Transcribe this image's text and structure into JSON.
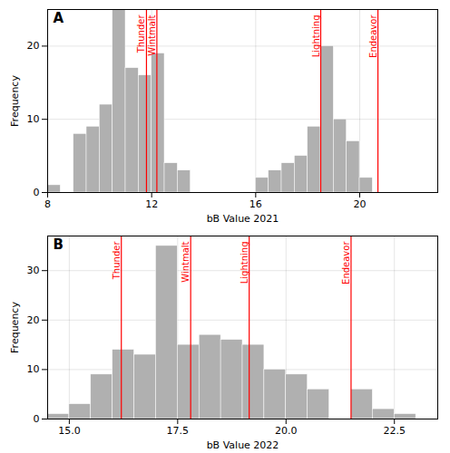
{
  "chart_data": [
    {
      "type": "histogram",
      "title": "A",
      "x_label": "bB Value 2021",
      "y_label": "Frequency",
      "xlim": [
        8,
        23
      ],
      "ylim": [
        0,
        25
      ],
      "xticks": [
        8,
        12,
        16,
        20
      ],
      "yticks": [
        0,
        10,
        20
      ],
      "bins": [
        8.0,
        8.5,
        9.0,
        9.5,
        10.0,
        10.5,
        11.0,
        11.5,
        12.0,
        12.5,
        13.0,
        13.5,
        14.0,
        14.5,
        15.0,
        15.5,
        16.0,
        16.5,
        17.0,
        17.5,
        18.0,
        18.5,
        19.0,
        19.5,
        20.0,
        20.5,
        21.0,
        21.5,
        22.0,
        22.5,
        23.0
      ],
      "values": [
        1,
        0,
        8,
        9,
        12,
        25,
        17,
        16,
        19,
        4,
        3,
        0,
        0,
        0,
        0,
        0,
        2,
        3,
        4,
        5,
        9,
        20,
        10,
        7,
        2,
        0,
        0,
        0,
        0,
        0
      ],
      "color": "#b0b0b0",
      "grid": true,
      "annotations": [
        {
          "x": 11.8,
          "text": "Thunder",
          "color": "red"
        },
        {
          "x": 12.2,
          "text": "Wintmalt",
          "color": "red"
        },
        {
          "x": 18.5,
          "text": "Lightning",
          "color": "red"
        },
        {
          "x": 20.7,
          "text": "Endeavor",
          "color": "red"
        }
      ]
    },
    {
      "type": "histogram",
      "title": "B",
      "x_label": "bB Value 2022",
      "y_label": "Frequency",
      "xlim": [
        14.5,
        23.5
      ],
      "ylim": [
        0,
        37
      ],
      "xticks": [
        {
          "value": 15.0,
          "label": "15.0"
        },
        17.5,
        {
          "value": 20.0,
          "label": "20.0"
        },
        22.5
      ],
      "yticks": [
        0,
        10,
        20,
        30
      ],
      "bins": [
        14.5,
        15.0,
        15.5,
        16.0,
        16.5,
        17.0,
        17.5,
        18.0,
        18.5,
        19.0,
        19.5,
        20.0,
        20.5,
        21.0,
        21.5,
        22.0,
        22.5,
        23.0,
        23.5
      ],
      "values": [
        1,
        3,
        9,
        14,
        13,
        35,
        15,
        17,
        16,
        15,
        10,
        9,
        6,
        0,
        6,
        2,
        1,
        0
      ],
      "color": "#b0b0b0",
      "grid": true,
      "annotations": [
        {
          "x": 16.2,
          "text": "Thunder",
          "color": "red"
        },
        {
          "x": 17.8,
          "text": "Wintmalt",
          "color": "red"
        },
        {
          "x": 19.15,
          "text": "Lightning",
          "color": "red"
        },
        {
          "x": 21.5,
          "text": "Endeavor",
          "color": "red"
        }
      ]
    }
  ]
}
